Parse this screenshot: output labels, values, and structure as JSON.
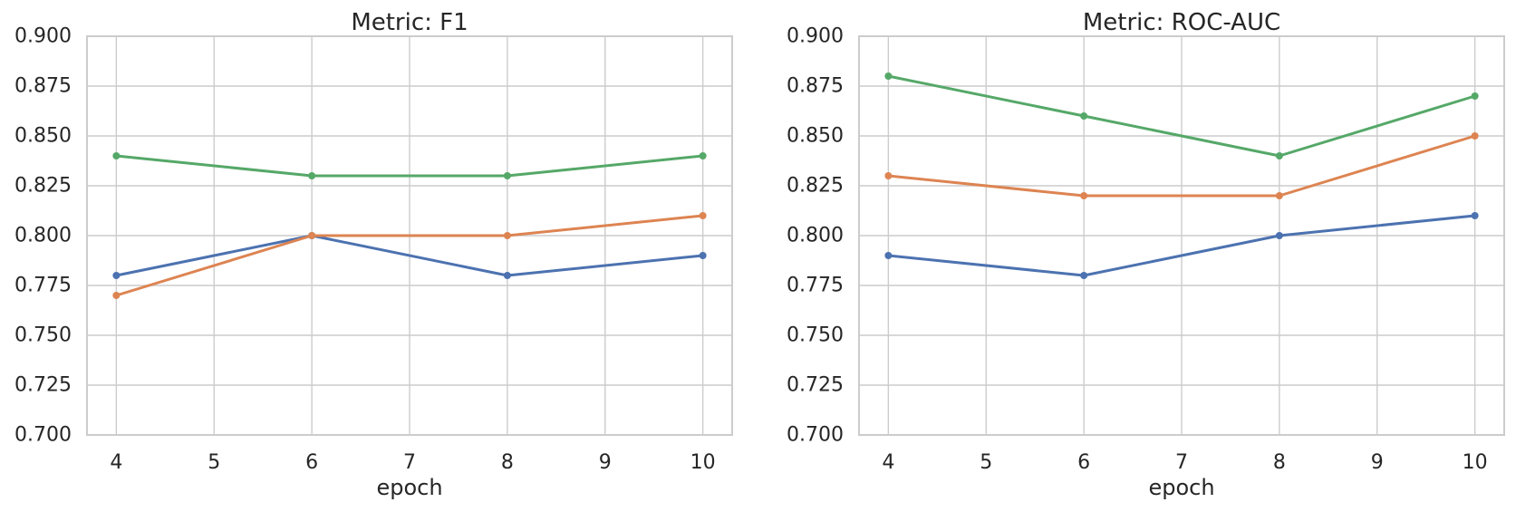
{
  "figure": {
    "background": "#ffffff"
  },
  "style": {
    "grid_color": "#cccccc",
    "spine_color": "#cccccc",
    "text_color": "#262626",
    "palette": {
      "blue": "#4C72B0",
      "orange": "#DD8452",
      "green": "#55A868"
    }
  },
  "chart_data": [
    {
      "type": "line",
      "title": "Metric: F1",
      "xlabel": "epoch",
      "ylabel": "",
      "x": [
        4,
        6,
        8,
        10
      ],
      "series": [
        {
          "name": "series-blue",
          "color": "#4C72B0",
          "values": [
            0.78,
            0.8,
            0.78,
            0.79
          ]
        },
        {
          "name": "series-orange",
          "color": "#DD8452",
          "values": [
            0.77,
            0.8,
            0.8,
            0.81
          ]
        },
        {
          "name": "series-green",
          "color": "#55A868",
          "values": [
            0.84,
            0.83,
            0.83,
            0.84
          ]
        }
      ],
      "xlim": [
        3.7,
        10.3
      ],
      "ylim": [
        0.7,
        0.9
      ],
      "xticks": [
        "4",
        "5",
        "6",
        "7",
        "8",
        "9",
        "10"
      ],
      "yticks": [
        "0.700",
        "0.725",
        "0.750",
        "0.775",
        "0.800",
        "0.825",
        "0.850",
        "0.875",
        "0.900"
      ],
      "grid": true,
      "legend": "none"
    },
    {
      "type": "line",
      "title": "Metric: ROC-AUC",
      "xlabel": "epoch",
      "ylabel": "",
      "x": [
        4,
        6,
        8,
        10
      ],
      "series": [
        {
          "name": "series-blue",
          "color": "#4C72B0",
          "values": [
            0.79,
            0.78,
            0.8,
            0.81
          ]
        },
        {
          "name": "series-orange",
          "color": "#DD8452",
          "values": [
            0.83,
            0.82,
            0.82,
            0.85
          ]
        },
        {
          "name": "series-green",
          "color": "#55A868",
          "values": [
            0.88,
            0.86,
            0.84,
            0.87
          ]
        }
      ],
      "xlim": [
        3.7,
        10.3
      ],
      "ylim": [
        0.7,
        0.9
      ],
      "xticks": [
        "4",
        "5",
        "6",
        "7",
        "8",
        "9",
        "10"
      ],
      "yticks": [
        "0.700",
        "0.725",
        "0.750",
        "0.775",
        "0.800",
        "0.825",
        "0.850",
        "0.875",
        "0.900"
      ],
      "grid": true,
      "legend": "none"
    }
  ]
}
